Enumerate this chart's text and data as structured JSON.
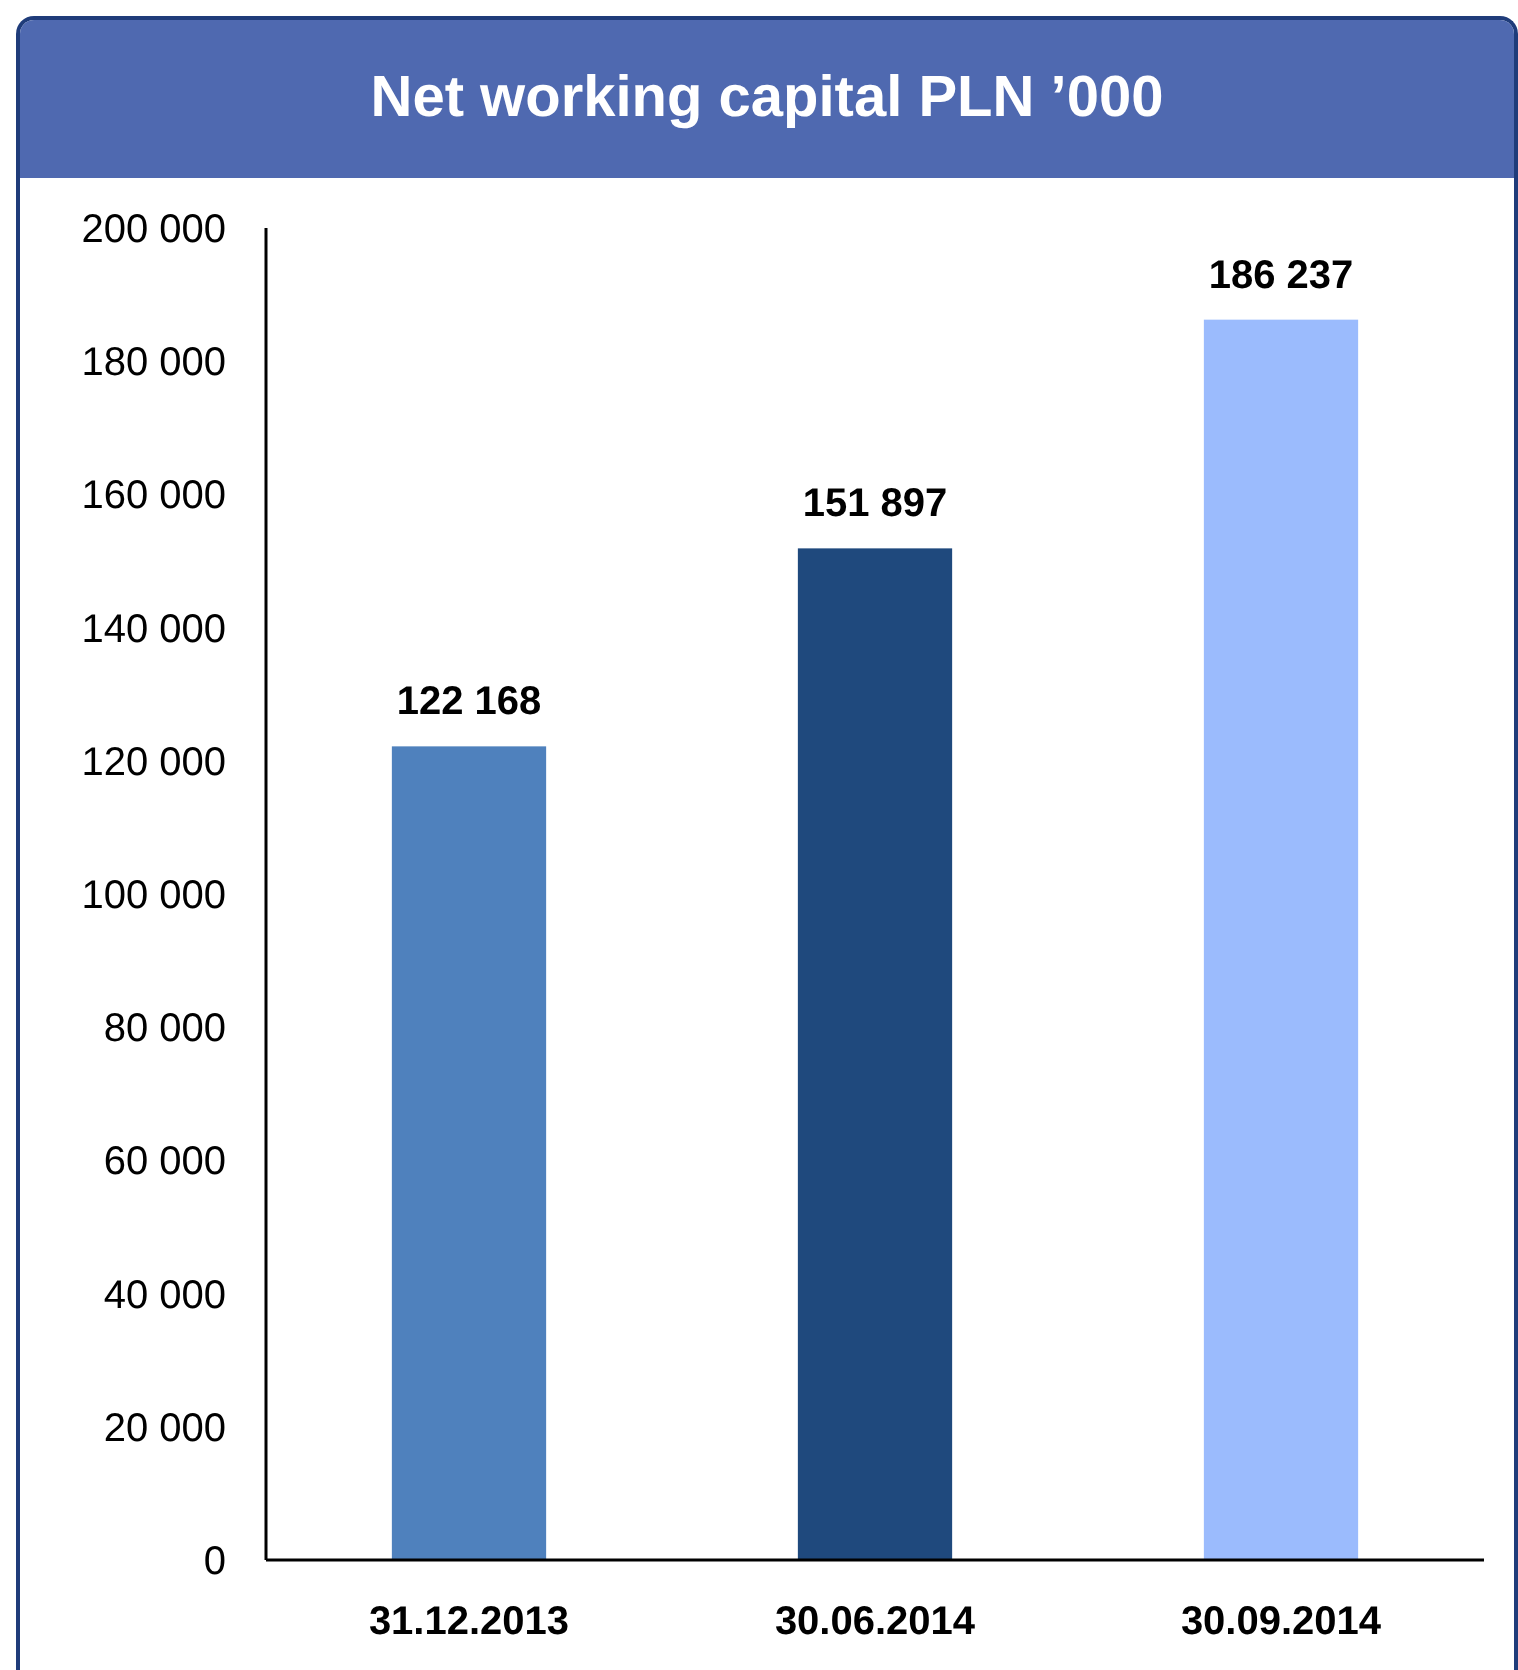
{
  "chart_data": {
    "type": "bar",
    "title": "Net working capital PLN ’000",
    "categories": [
      "31.12.2013",
      "30.06.2014",
      "30.09.2014"
    ],
    "values": [
      122168,
      151897,
      186237
    ],
    "colors": [
      "#4f81bd",
      "#1f497d",
      "#9bbbfd"
    ],
    "value_labels": [
      "122 168",
      "151 897",
      "186 237"
    ],
    "ylim": [
      0,
      200000
    ],
    "yticks": [
      {
        "value": 0,
        "label": "0"
      },
      {
        "value": 20000,
        "label": "20 000"
      },
      {
        "value": 40000,
        "label": "40 000"
      },
      {
        "value": 60000,
        "label": "60 000"
      },
      {
        "value": 80000,
        "label": "80 000"
      },
      {
        "value": 100000,
        "label": "100 000"
      },
      {
        "value": 120000,
        "label": "120 000"
      },
      {
        "value": 140000,
        "label": "140 000"
      },
      {
        "value": 160000,
        "label": "160 000"
      },
      {
        "value": 180000,
        "label": "180 000"
      },
      {
        "value": 200000,
        "label": "200 000"
      }
    ],
    "grid": false
  }
}
